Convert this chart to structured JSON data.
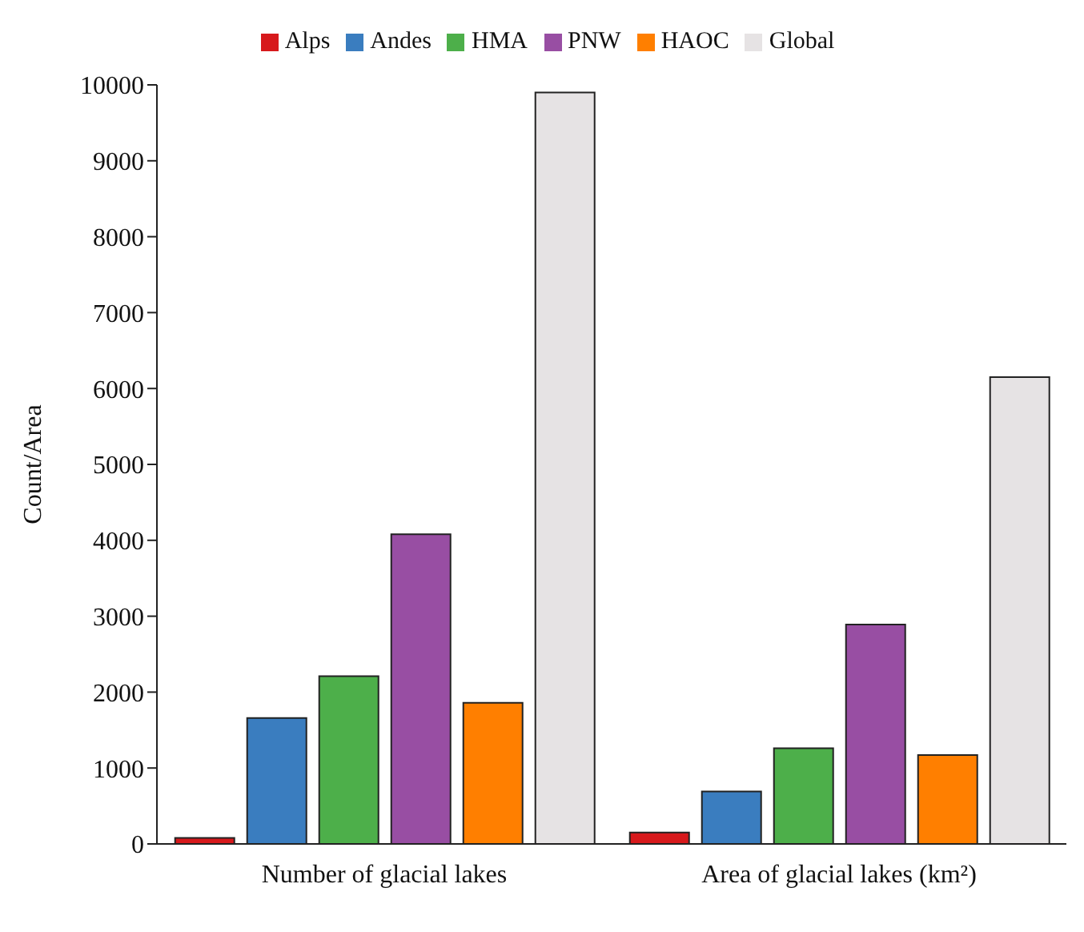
{
  "chart_data": {
    "type": "bar",
    "ylabel": "Count/Area",
    "categories": [
      "Number of glacial lakes",
      "Area of glacial lakes (km²)"
    ],
    "series": [
      {
        "name": "Alps",
        "color": "#d7191c",
        "values": [
          80,
          150
        ]
      },
      {
        "name": "Andes",
        "color": "#3a7dbf",
        "values": [
          1660,
          690
        ]
      },
      {
        "name": "HMA",
        "color": "#4daf4a",
        "values": [
          2210,
          1260
        ]
      },
      {
        "name": "PNW",
        "color": "#984ea3",
        "values": [
          4080,
          2890
        ]
      },
      {
        "name": "HAOC",
        "color": "#ff7f00",
        "values": [
          1860,
          1170
        ]
      },
      {
        "name": "Global",
        "color": "#e6e3e4",
        "values": [
          9900,
          6150
        ]
      }
    ],
    "ylim": [
      0,
      10000
    ],
    "yticks": [
      0,
      1000,
      2000,
      3000,
      4000,
      5000,
      6000,
      7000,
      8000,
      9000,
      10000
    ],
    "grid": false,
    "legend": "top"
  }
}
